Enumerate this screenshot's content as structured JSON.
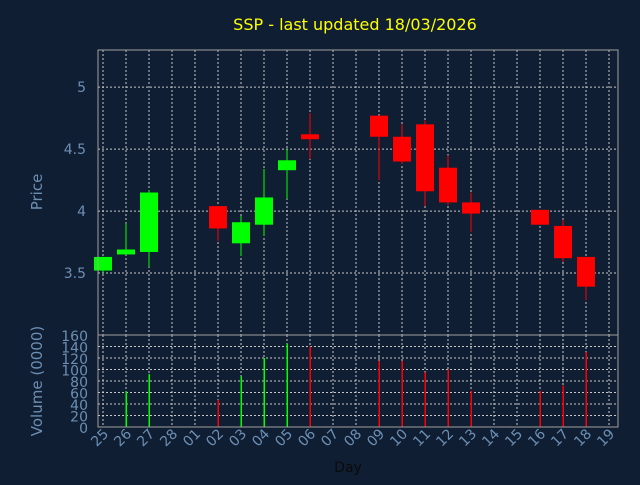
{
  "chart_data": [
    {
      "type": "candlestick",
      "title": "SSP - last updated 18/03/2026",
      "ylabel": "Price",
      "ylim": [
        3.0,
        5.3
      ],
      "yticks": [
        3.5,
        4,
        4.5,
        5
      ],
      "ytick_labels": [
        "3.5",
        "4",
        "4.5",
        "5"
      ],
      "grid": true,
      "categories": [
        "25",
        "26",
        "27",
        "28",
        "01",
        "02",
        "03",
        "04",
        "05",
        "06",
        "07",
        "08",
        "09",
        "10",
        "11",
        "12",
        "13",
        "14",
        "15",
        "16",
        "17",
        "18",
        "19"
      ],
      "candles": [
        {
          "x": "25",
          "open": 3.52,
          "close": 3.63,
          "high": 3.63,
          "low": 3.5
        },
        {
          "x": "26",
          "open": 3.65,
          "close": 3.69,
          "high": 3.9,
          "low": 3.65
        },
        {
          "x": "27",
          "open": 3.67,
          "close": 4.15,
          "high": 4.17,
          "low": 3.55
        },
        {
          "x": "02",
          "open": 4.04,
          "close": 3.86,
          "high": 4.04,
          "low": 3.76
        },
        {
          "x": "03",
          "open": 3.74,
          "close": 3.91,
          "high": 3.96,
          "low": 3.64
        },
        {
          "x": "04",
          "open": 3.89,
          "close": 4.11,
          "high": 4.34,
          "low": 3.8
        },
        {
          "x": "05",
          "open": 4.33,
          "close": 4.41,
          "high": 4.5,
          "low": 4.1
        },
        {
          "x": "06",
          "open": 4.62,
          "close": 4.58,
          "high": 4.79,
          "low": 4.42
        },
        {
          "x": "09",
          "open": 4.77,
          "close": 4.6,
          "high": 4.77,
          "low": 4.25
        },
        {
          "x": "10",
          "open": 4.6,
          "close": 4.4,
          "high": 4.7,
          "low": 4.38
        },
        {
          "x": "11",
          "open": 4.7,
          "close": 4.16,
          "high": 4.73,
          "low": 4.04
        },
        {
          "x": "12",
          "open": 4.35,
          "close": 4.07,
          "high": 4.45,
          "low": 4.05
        },
        {
          "x": "13",
          "open": 4.07,
          "close": 3.98,
          "high": 4.15,
          "low": 3.83
        },
        {
          "x": "16",
          "open": 4.01,
          "close": 3.89,
          "high": 4.01,
          "low": 3.89
        },
        {
          "x": "17",
          "open": 3.88,
          "close": 3.62,
          "high": 3.93,
          "low": 3.59
        },
        {
          "x": "18",
          "open": 3.63,
          "close": 3.39,
          "high": 3.63,
          "low": 3.28
        }
      ],
      "up_color": "#00ff00",
      "down_color": "#ff0000"
    },
    {
      "type": "bar",
      "ylabel": "Volume (0000)",
      "xlabel": "Day",
      "ylim": [
        0,
        160
      ],
      "yticks": [
        0,
        20,
        40,
        60,
        80,
        100,
        120,
        140,
        160
      ],
      "ytick_labels": [
        "0",
        "20",
        "40",
        "60",
        "80",
        "100",
        "120",
        "140",
        "160"
      ],
      "grid": true,
      "bars": [
        {
          "x": "26",
          "value": 62,
          "dir": "up"
        },
        {
          "x": "27",
          "value": 92,
          "dir": "up"
        },
        {
          "x": "02",
          "value": 47,
          "dir": "down"
        },
        {
          "x": "03",
          "value": 88,
          "dir": "up"
        },
        {
          "x": "04",
          "value": 120,
          "dir": "up"
        },
        {
          "x": "05",
          "value": 145,
          "dir": "up"
        },
        {
          "x": "06",
          "value": 140,
          "dir": "down"
        },
        {
          "x": "09",
          "value": 115,
          "dir": "down"
        },
        {
          "x": "10",
          "value": 115,
          "dir": "down"
        },
        {
          "x": "11",
          "value": 95,
          "dir": "down"
        },
        {
          "x": "12",
          "value": 100,
          "dir": "down"
        },
        {
          "x": "13",
          "value": 63,
          "dir": "down"
        },
        {
          "x": "16",
          "value": 63,
          "dir": "down"
        },
        {
          "x": "17",
          "value": 72,
          "dir": "down"
        },
        {
          "x": "18",
          "value": 130,
          "dir": "down"
        }
      ]
    }
  ],
  "colors": {
    "background": "#0f1e32",
    "title": "#ffff00",
    "axis_text": "#6d8fb4",
    "frame": "#a0a0a0",
    "grid": "#c8c8c8"
  }
}
